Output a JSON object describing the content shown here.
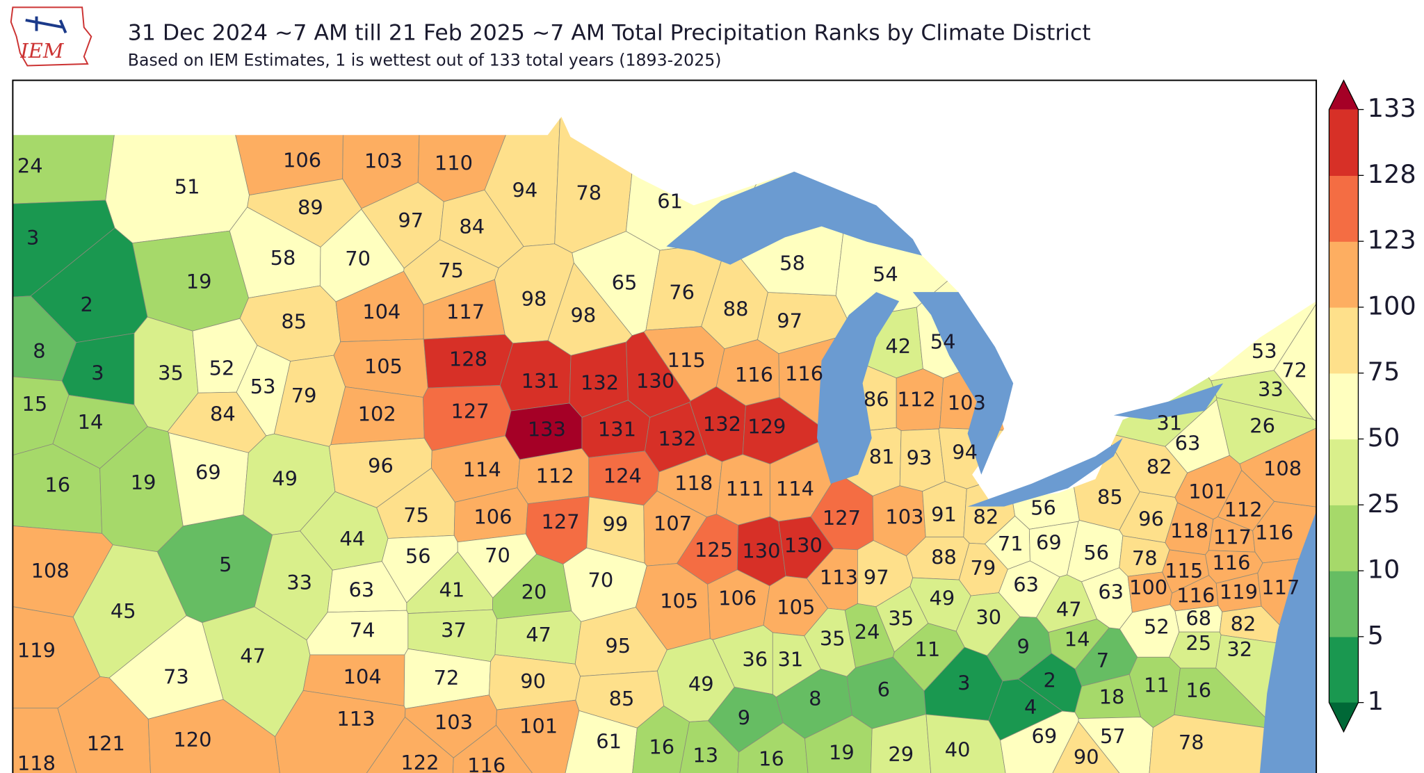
{
  "header": {
    "logo": "IEM",
    "title": "31 Dec 2024 ~7 AM till 21 Feb 2025 ~7 AM Total Precipitation Ranks by Climate District",
    "subtitle": "Based on IEM Estimates, 1 is wettest out of 133 total years (1893-2025)"
  },
  "colorbar": {
    "ticks": [
      1,
      5,
      10,
      25,
      50,
      75,
      100,
      123,
      128,
      133
    ],
    "colors": [
      "#1a9850",
      "#66bd63",
      "#a6d96a",
      "#d9ef8b",
      "#ffffbf",
      "#fee08b",
      "#fdae61",
      "#f46d43",
      "#d73027"
    ],
    "under_color": "#006837",
    "over_color": "#a50026"
  },
  "ranks": [
    24,
    51,
    3,
    19,
    2,
    106,
    103,
    110,
    89,
    97,
    84,
    58,
    70,
    75,
    85,
    104,
    117,
    105,
    128,
    53,
    79,
    102,
    127,
    8,
    3,
    35,
    52,
    15,
    14,
    84,
    16,
    19,
    69,
    49,
    96,
    114,
    75,
    106,
    44,
    56,
    70,
    108,
    5,
    33,
    45,
    119,
    47,
    73,
    63,
    41,
    20,
    74,
    37,
    47,
    104,
    72,
    90,
    118,
    121,
    120,
    113,
    103,
    101,
    122,
    116,
    94,
    78,
    61,
    65,
    98,
    98,
    131,
    132,
    130,
    133,
    131,
    132,
    76,
    88,
    97,
    115,
    116,
    116,
    132,
    129,
    58,
    54,
    112,
    124,
    118,
    127,
    99,
    107,
    111,
    114,
    125,
    130,
    130,
    127,
    113,
    106,
    105,
    36,
    31,
    9,
    35,
    70,
    105,
    95,
    49,
    85,
    61,
    16,
    13,
    16,
    42,
    54,
    86,
    112,
    103,
    81,
    93,
    94,
    103,
    97,
    24,
    35,
    91,
    82,
    56,
    71,
    69,
    88,
    79,
    63,
    49,
    30,
    11,
    6,
    3,
    8,
    19,
    29,
    40,
    9,
    47,
    14,
    2,
    7,
    4,
    18,
    11,
    16,
    69,
    90,
    57,
    78,
    85,
    96,
    118,
    101,
    112,
    117,
    116,
    56,
    78,
    116,
    115,
    63,
    100,
    116,
    119,
    117,
    52,
    68,
    82,
    25,
    32,
    31,
    63,
    82,
    26,
    53,
    72,
    33,
    108
  ]
}
